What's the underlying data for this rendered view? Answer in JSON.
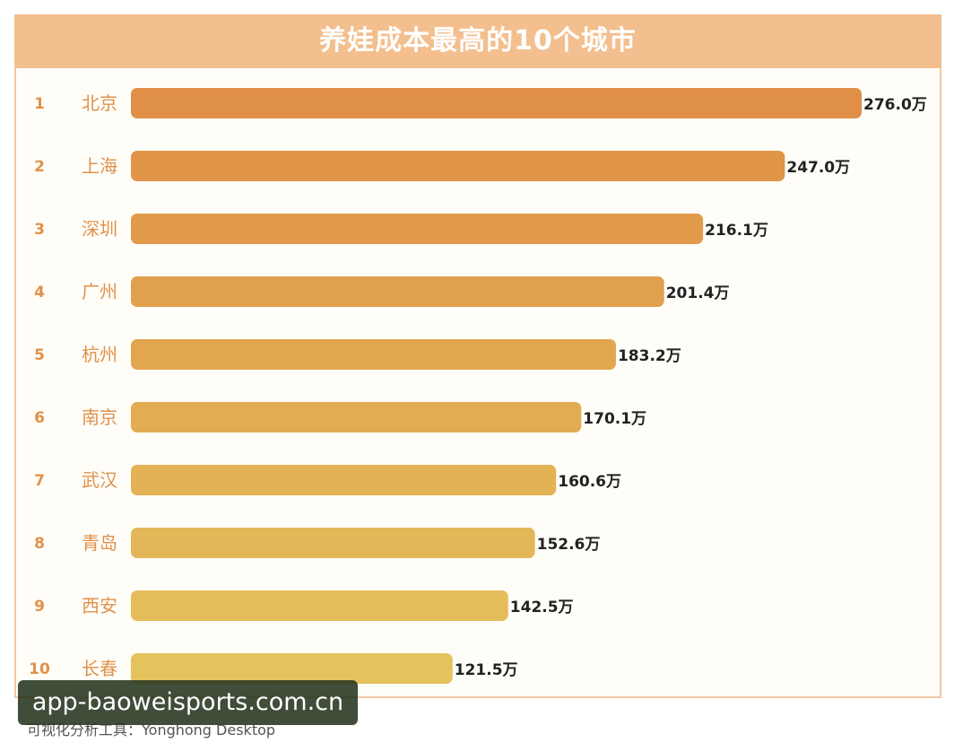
{
  "chart_data": {
    "type": "bar",
    "orientation": "horizontal",
    "title": "养娃成本最高的10个城市",
    "ranks": [
      "1",
      "2",
      "3",
      "4",
      "5",
      "6",
      "7",
      "8",
      "9",
      "10"
    ],
    "categories": [
      "北京",
      "上海",
      "深圳",
      "广州",
      "杭州",
      "南京",
      "武汉",
      "青岛",
      "西安",
      "长春"
    ],
    "values": [
      276.0,
      247.0,
      216.1,
      201.4,
      183.2,
      170.1,
      160.6,
      152.6,
      142.5,
      121.5
    ],
    "value_labels": [
      "276.0万",
      "247.0万",
      "216.1万",
      "201.4万",
      "183.2万",
      "170.1万",
      "160.6万",
      "152.6万",
      "142.5万",
      "121.5万"
    ],
    "unit": "万",
    "xlim": [
      0,
      276.0
    ],
    "grid": false,
    "legend": "none",
    "colors": {
      "title_bg": "#f3bf8e",
      "bar_top": "#e08f46",
      "bar_bottom": "#e4c35c",
      "rank_label": "#e0914a",
      "value_label": "#222222"
    }
  },
  "footer": {
    "tool_note": "可视化分析工具：Yonghong Desktop",
    "watermark": "app-baoweisports.com.cn"
  }
}
